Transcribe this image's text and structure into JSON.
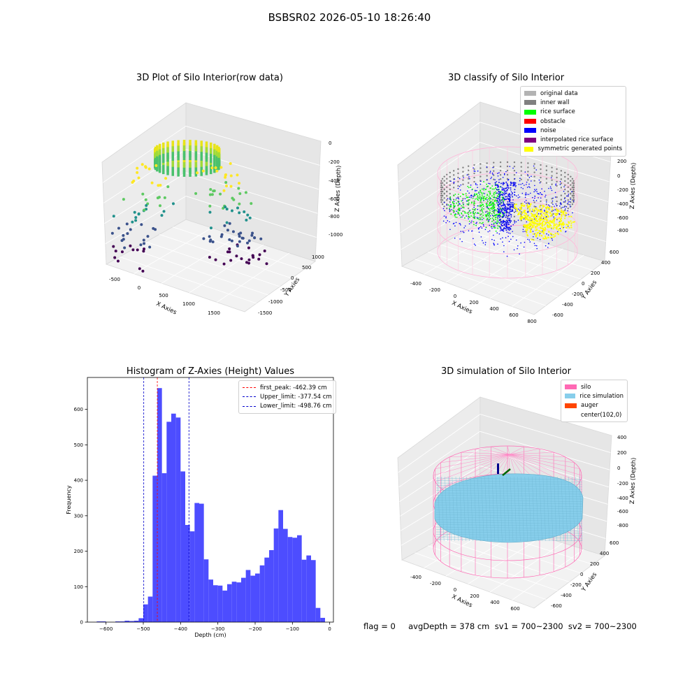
{
  "suptitle": "BSBSR02 2026-05-10 18:26:40",
  "status_text": "flag = 0     avgDepth = 378 cm  sv1 = 700~2300  sv2 = 700~2300",
  "plot1": {
    "title": "3D Plot of Silo Interior(row data)",
    "xlabel": "X Axies",
    "ylabel": "Y Axies",
    "zlabel": "Z Axies (Depth)",
    "xticks": [
      "-500",
      "0",
      "500",
      "1000",
      "1500"
    ],
    "yticks": [
      "1000",
      "500",
      "0",
      "-500",
      "-1000",
      "-1500"
    ],
    "zticks": [
      "0",
      "-200",
      "-400",
      "-600",
      "-800",
      "-1000"
    ]
  },
  "plot2": {
    "title": "3D classify of Silo Interior",
    "xlabel": "X Axies",
    "ylabel": "Y Axies",
    "zlabel": "Z Axies (Depth)",
    "xticks": [
      "-400",
      "-200",
      "0",
      "200",
      "400",
      "600",
      "800"
    ],
    "yticks": [
      "600",
      "400",
      "200",
      "0",
      "-200",
      "-400",
      "-600"
    ],
    "zticks": [
      "200",
      "0",
      "-200",
      "-400",
      "-600",
      "-800"
    ],
    "legend": [
      {
        "label": "original data",
        "color": "#b3b3b3"
      },
      {
        "label": "inner wall",
        "color": "#808080"
      },
      {
        "label": "rice surface",
        "color": "#00ff00"
      },
      {
        "label": "obstacle",
        "color": "#ff0000"
      },
      {
        "label": "noise",
        "color": "#0000ff"
      },
      {
        "label": "interpolated rice surface",
        "color": "#800080"
      },
      {
        "label": "symmetric generated points",
        "color": "#ffff00"
      }
    ]
  },
  "plot4": {
    "title": "3D simulation of Silo Interior",
    "xlabel": "X Axies",
    "ylabel": "Y Axies",
    "zlabel": "Z Axies (Depth)",
    "xticks": [
      "-400",
      "-200",
      "0",
      "200",
      "400",
      "600"
    ],
    "yticks": [
      "600",
      "400",
      "200",
      "0",
      "-200",
      "-400",
      "-600"
    ],
    "zticks": [
      "400",
      "200",
      "0",
      "-200",
      "-400",
      "-600",
      "-800"
    ],
    "legend": [
      {
        "label": "silo",
        "color": "#ff69b4"
      },
      {
        "label": "rice simulation",
        "color": "#87ceeb"
      },
      {
        "label": "auger",
        "color": "#ff4500"
      },
      {
        "label": "center(102,0)",
        "color": ""
      }
    ]
  },
  "chart_data": [
    {
      "type": "bar",
      "title": "Histogram of Z-Axies (Height) Values",
      "xlabel": "Depth (cm)",
      "ylabel": "Frequency",
      "xlim": [
        -650,
        10
      ],
      "ylim": [
        0,
        690
      ],
      "xticks": [
        -600,
        -500,
        -400,
        -300,
        -200,
        -100,
        0
      ],
      "yticks": [
        0,
        100,
        200,
        300,
        400,
        500,
        600
      ],
      "bar_color": "#4d4dff",
      "bin_width": 12.5,
      "bins": [
        {
          "x": -625,
          "v": 2
        },
        {
          "x": -612.5,
          "v": 2
        },
        {
          "x": -575,
          "v": 2
        },
        {
          "x": -562.5,
          "v": 2
        },
        {
          "x": -550,
          "v": 4
        },
        {
          "x": -537.5,
          "v": 3
        },
        {
          "x": -525,
          "v": 4
        },
        {
          "x": -512.5,
          "v": 11
        },
        {
          "x": -500,
          "v": 50
        },
        {
          "x": -487.5,
          "v": 72
        },
        {
          "x": -475,
          "v": 413
        },
        {
          "x": -462.5,
          "v": 660
        },
        {
          "x": -450,
          "v": 420
        },
        {
          "x": -437.5,
          "v": 565
        },
        {
          "x": -425,
          "v": 588
        },
        {
          "x": -412.5,
          "v": 577
        },
        {
          "x": -400,
          "v": 425
        },
        {
          "x": -387.5,
          "v": 274
        },
        {
          "x": -375,
          "v": 256
        },
        {
          "x": -362.5,
          "v": 336
        },
        {
          "x": -350,
          "v": 334
        },
        {
          "x": -337.5,
          "v": 177
        },
        {
          "x": -325,
          "v": 120
        },
        {
          "x": -312.5,
          "v": 104
        },
        {
          "x": -300,
          "v": 103
        },
        {
          "x": -287.5,
          "v": 89
        },
        {
          "x": -275,
          "v": 107
        },
        {
          "x": -262.5,
          "v": 114
        },
        {
          "x": -250,
          "v": 112
        },
        {
          "x": -237.5,
          "v": 125
        },
        {
          "x": -225,
          "v": 147
        },
        {
          "x": -212.5,
          "v": 131
        },
        {
          "x": -200,
          "v": 137
        },
        {
          "x": -187.5,
          "v": 160
        },
        {
          "x": -175,
          "v": 182
        },
        {
          "x": -162.5,
          "v": 203
        },
        {
          "x": -150,
          "v": 264
        },
        {
          "x": -137.5,
          "v": 316
        },
        {
          "x": -125,
          "v": 263
        },
        {
          "x": -112.5,
          "v": 240
        },
        {
          "x": -100,
          "v": 238
        },
        {
          "x": -87.5,
          "v": 245
        },
        {
          "x": -75,
          "v": 176
        },
        {
          "x": -62.5,
          "v": 188
        },
        {
          "x": -50,
          "v": 175
        },
        {
          "x": -37.5,
          "v": 40
        },
        {
          "x": -25,
          "v": 12
        }
      ],
      "vlines": [
        {
          "label": "first_peak: -462.39 cm",
          "x": -462.39,
          "color": "#ff0000"
        },
        {
          "label": "Upper_limit: -377.54 cm",
          "x": -377.54,
          "color": "#0000cc"
        },
        {
          "label": "Lower_limit: -498.76 cm",
          "x": -498.76,
          "color": "#0000cc"
        }
      ]
    }
  ]
}
